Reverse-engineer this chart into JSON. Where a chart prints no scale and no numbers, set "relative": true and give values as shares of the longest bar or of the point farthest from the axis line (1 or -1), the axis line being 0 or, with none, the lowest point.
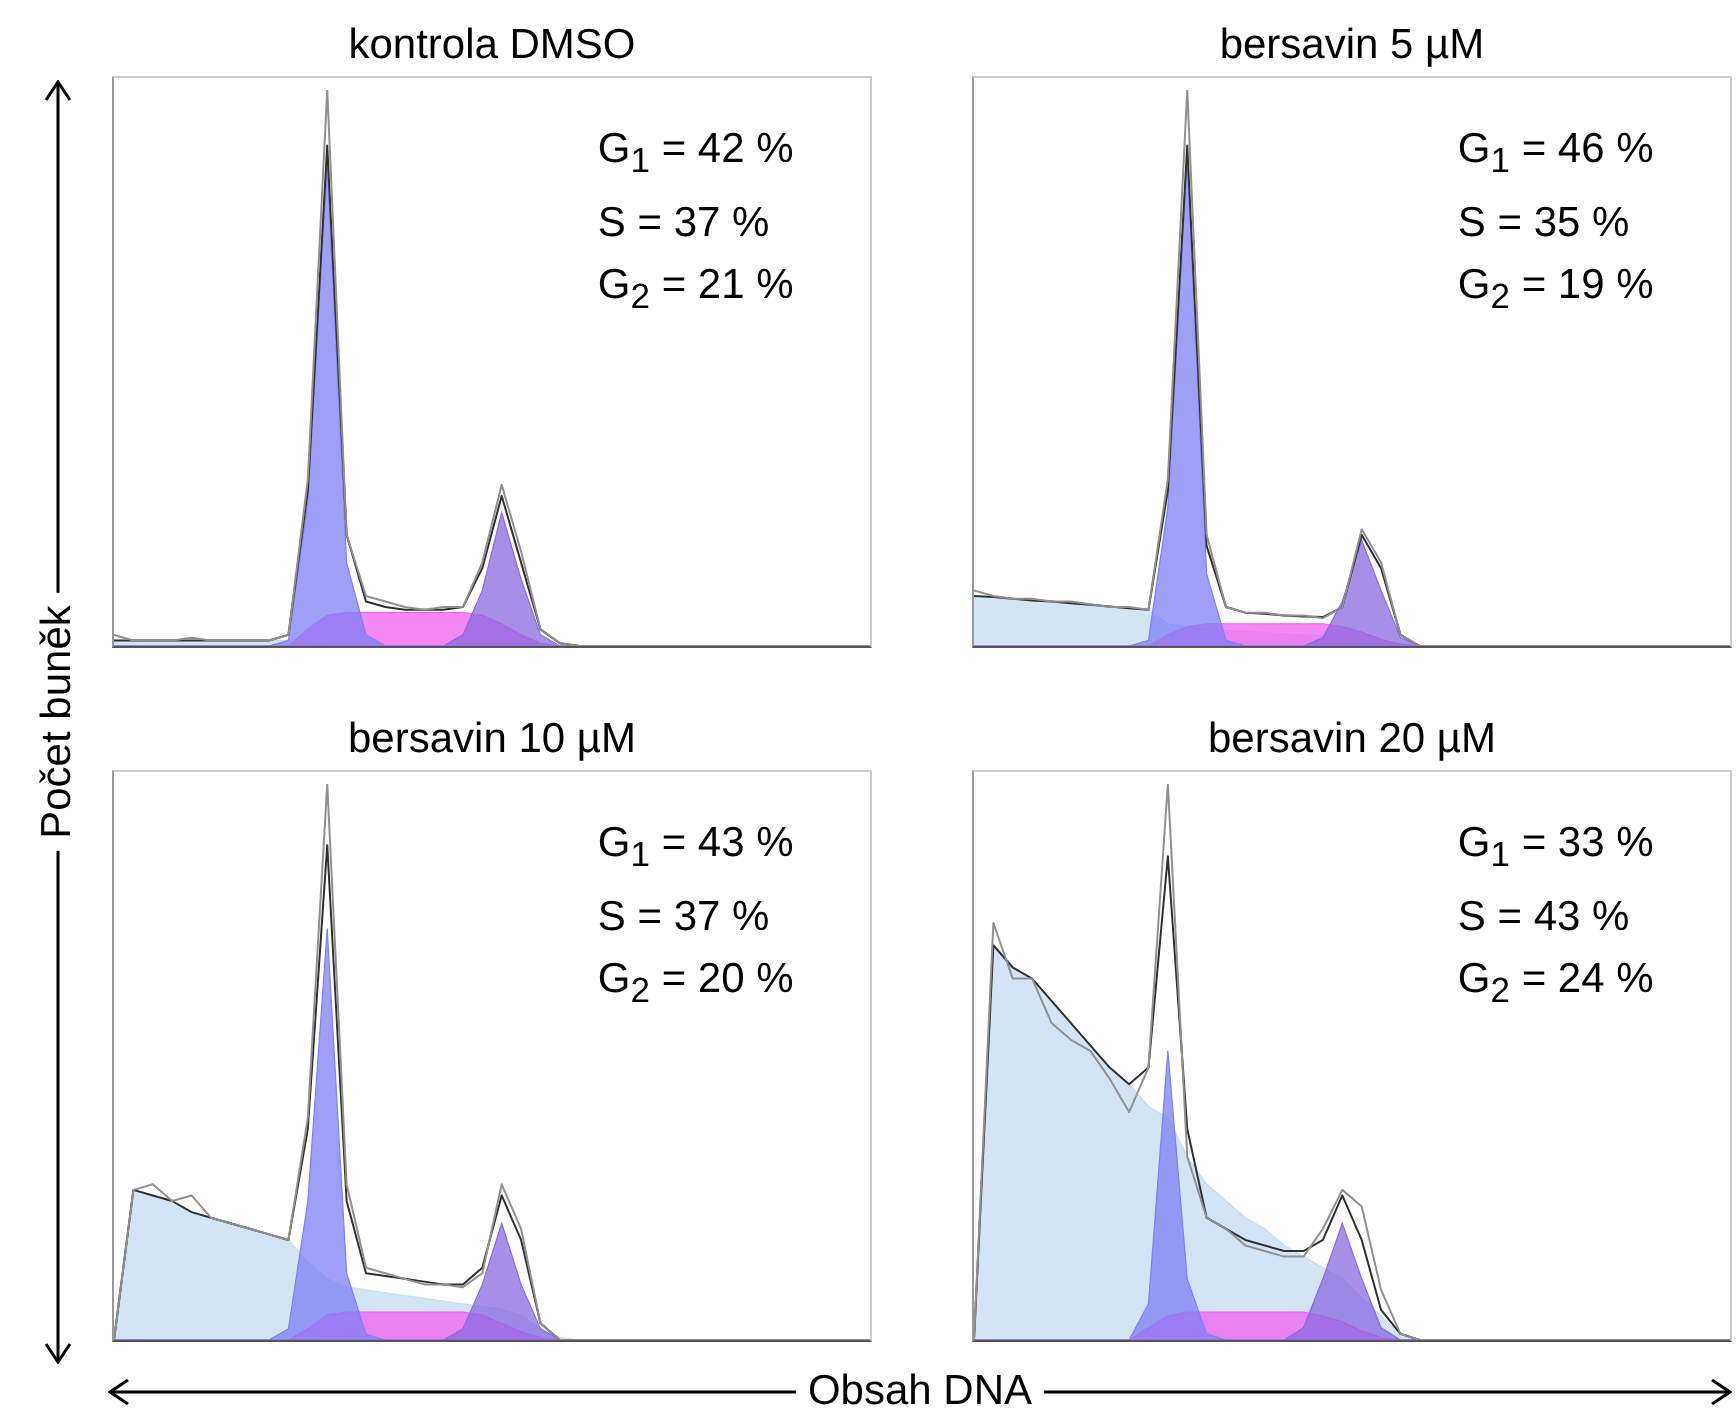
{
  "chart_data": [
    {
      "type": "area",
      "title": "kontrola DMSO",
      "ylabel": "Počet buněk",
      "relative": true,
      "categories": [
        null,
        null,
        null,
        null,
        null,
        null,
        null,
        null,
        null,
        null,
        null,
        null,
        null,
        null,
        null,
        null,
        null,
        null,
        null,
        null,
        null,
        null,
        null,
        null,
        null,
        null,
        null,
        null,
        null,
        null,
        null,
        null,
        null,
        null,
        null,
        null,
        null,
        null,
        null,
        null
      ],
      "annotations": [
        "G$_{1}$ = 42 %",
        "S = 37 %",
        "G$_{2}$ = 21 %"
      ],
      "series": [
        {
          "color": "#c5dbf0",
          "values": [
            0.01,
            0.01,
            0.01,
            0.01,
            0.01,
            0.01,
            0.01,
            0.01,
            0.01,
            0.01,
            0.005,
            0,
            0,
            0,
            0,
            0,
            0,
            0,
            0,
            0,
            0,
            0,
            0,
            0,
            0,
            0,
            0,
            0,
            0,
            0,
            0,
            0,
            0,
            0,
            0,
            0,
            0,
            0,
            0,
            0
          ]
        },
        {
          "color": "#f060f0",
          "values": [
            0,
            0,
            0,
            0,
            0,
            0,
            0,
            0,
            0,
            0,
            0.03,
            0.055,
            0.06,
            0.06,
            0.06,
            0.06,
            0.06,
            0.06,
            0.06,
            0.055,
            0.04,
            0.02,
            0.005,
            0,
            0,
            0,
            0,
            0,
            0,
            0,
            0,
            0,
            0,
            0,
            0,
            0,
            0,
            0,
            0,
            0
          ]
        },
        {
          "color": "#7f7ff5",
          "values": [
            0,
            0,
            0,
            0,
            0,
            0,
            0,
            0,
            0,
            0.01,
            0.26,
            0.87,
            0.15,
            0.02,
            0,
            0,
            0,
            0,
            0,
            0,
            0,
            0,
            0,
            0,
            0,
            0,
            0,
            0,
            0,
            0,
            0,
            0,
            0,
            0,
            0,
            0,
            0,
            0,
            0,
            0
          ]
        },
        {
          "color": "#8a6ae0",
          "values": [
            0,
            0,
            0,
            0,
            0,
            0,
            0,
            0,
            0,
            0,
            0,
            0,
            0,
            0,
            0,
            0,
            0,
            0,
            0.02,
            0.1,
            0.24,
            0.12,
            0.02,
            0,
            0,
            0,
            0,
            0,
            0,
            0,
            0,
            0,
            0,
            0,
            0,
            0,
            0,
            0,
            0,
            0
          ]
        },
        {
          "type": "line",
          "color": "#303030",
          "values": [
            0.01,
            0.01,
            0.01,
            0.01,
            0.01,
            0.01,
            0.01,
            0.01,
            0.01,
            0.02,
            0.28,
            0.9,
            0.2,
            0.08,
            0.07,
            0.065,
            0.065,
            0.065,
            0.07,
            0.14,
            0.27,
            0.15,
            0.03,
            0.005,
            0,
            0,
            0,
            0,
            0,
            0,
            0,
            0,
            0,
            0,
            0,
            0,
            0,
            0,
            0,
            0
          ]
        },
        {
          "type": "line",
          "color": "#909090",
          "values": [
            0.02,
            0.01,
            0.01,
            0.01,
            0.015,
            0.01,
            0.01,
            0.01,
            0.01,
            0.02,
            0.3,
            1.0,
            0.2,
            0.09,
            0.08,
            0.07,
            0.065,
            0.07,
            0.07,
            0.15,
            0.29,
            0.17,
            0.03,
            0.005,
            0,
            0,
            0,
            0,
            0,
            0,
            0,
            0,
            0,
            0,
            0,
            0,
            0,
            0,
            0,
            0
          ]
        }
      ]
    },
    {
      "type": "area",
      "title": "bersavin 5 µM",
      "relative": true,
      "categories": [
        null,
        null,
        null,
        null,
        null,
        null,
        null,
        null,
        null,
        null,
        null,
        null,
        null,
        null,
        null,
        null,
        null,
        null,
        null,
        null,
        null,
        null,
        null,
        null,
        null,
        null,
        null,
        null,
        null,
        null,
        null,
        null,
        null,
        null,
        null,
        null,
        null,
        null,
        null,
        null
      ],
      "annotations": [
        "G$_{1}$ = 46 %",
        "S = 35 %",
        "G$_{2}$ = 19 %"
      ],
      "series": [
        {
          "color": "#c5dbf0",
          "values": [
            0.09,
            0.088,
            0.085,
            0.082,
            0.08,
            0.077,
            0.074,
            0.071,
            0.068,
            0.065,
            0.04,
            0.035,
            0.03,
            0.028,
            0.026,
            0.024,
            0.022,
            0.02,
            0.018,
            0.015,
            0.012,
            0.008,
            0.004,
            0,
            0,
            0,
            0,
            0,
            0,
            0,
            0,
            0,
            0,
            0,
            0,
            0,
            0,
            0,
            0,
            0
          ]
        },
        {
          "color": "#f060f0",
          "values": [
            0,
            0,
            0,
            0,
            0,
            0,
            0,
            0,
            0,
            0,
            0.02,
            0.035,
            0.04,
            0.04,
            0.04,
            0.04,
            0.04,
            0.04,
            0.04,
            0.035,
            0.025,
            0.012,
            0.003,
            0,
            0,
            0,
            0,
            0,
            0,
            0,
            0,
            0,
            0,
            0,
            0,
            0,
            0,
            0,
            0,
            0
          ]
        },
        {
          "color": "#7f7ff5",
          "values": [
            0,
            0,
            0,
            0,
            0,
            0,
            0,
            0,
            0,
            0.01,
            0.25,
            0.88,
            0.13,
            0.01,
            0,
            0,
            0,
            0,
            0,
            0,
            0,
            0,
            0,
            0,
            0,
            0,
            0,
            0,
            0,
            0,
            0,
            0,
            0,
            0,
            0,
            0,
            0,
            0,
            0,
            0
          ]
        },
        {
          "color": "#8a6ae0",
          "values": [
            0,
            0,
            0,
            0,
            0,
            0,
            0,
            0,
            0,
            0,
            0,
            0,
            0,
            0,
            0,
            0,
            0,
            0,
            0.015,
            0.08,
            0.19,
            0.1,
            0.015,
            0,
            0,
            0,
            0,
            0,
            0,
            0,
            0,
            0,
            0,
            0,
            0,
            0,
            0,
            0,
            0,
            0
          ]
        },
        {
          "type": "line",
          "color": "#303030",
          "values": [
            0.09,
            0.088,
            0.085,
            0.082,
            0.08,
            0.077,
            0.074,
            0.071,
            0.068,
            0.065,
            0.28,
            0.9,
            0.18,
            0.07,
            0.06,
            0.058,
            0.055,
            0.053,
            0.052,
            0.07,
            0.2,
            0.14,
            0.02,
            0,
            0,
            0,
            0,
            0,
            0,
            0,
            0,
            0,
            0,
            0,
            0,
            0,
            0,
            0,
            0,
            0
          ]
        },
        {
          "type": "line",
          "color": "#909090",
          "values": [
            0.1,
            0.09,
            0.085,
            0.085,
            0.08,
            0.08,
            0.075,
            0.07,
            0.07,
            0.065,
            0.3,
            1.0,
            0.2,
            0.07,
            0.06,
            0.06,
            0.055,
            0.055,
            0.05,
            0.07,
            0.21,
            0.15,
            0.02,
            0,
            0,
            0,
            0,
            0,
            0,
            0,
            0,
            0,
            0,
            0,
            0,
            0,
            0,
            0,
            0,
            0
          ]
        }
      ]
    },
    {
      "type": "area",
      "title": "bersavin 10 µM",
      "xlabel": "Obsah DNA",
      "relative": true,
      "categories": [
        null,
        null,
        null,
        null,
        null,
        null,
        null,
        null,
        null,
        null,
        null,
        null,
        null,
        null,
        null,
        null,
        null,
        null,
        null,
        null,
        null,
        null,
        null,
        null,
        null,
        null,
        null,
        null,
        null,
        null,
        null,
        null,
        null,
        null,
        null,
        null,
        null,
        null,
        null,
        null
      ],
      "annotations": [
        "G$_{1}$ = 43 %",
        "S = 37 %",
        "G$_{2}$ = 20 %"
      ],
      "series": [
        {
          "color": "#c5dbf0",
          "values": [
            0,
            0.27,
            0.26,
            0.25,
            0.23,
            0.22,
            0.21,
            0.2,
            0.19,
            0.18,
            0.14,
            0.11,
            0.095,
            0.09,
            0.085,
            0.08,
            0.075,
            0.07,
            0.065,
            0.06,
            0.055,
            0.045,
            0.02,
            0.005,
            0,
            0,
            0,
            0,
            0,
            0,
            0,
            0,
            0,
            0,
            0,
            0,
            0,
            0,
            0,
            0
          ]
        },
        {
          "color": "#f060f0",
          "values": [
            0,
            0,
            0,
            0,
            0,
            0,
            0,
            0,
            0,
            0,
            0.02,
            0.045,
            0.05,
            0.05,
            0.05,
            0.05,
            0.05,
            0.05,
            0.05,
            0.045,
            0.03,
            0.015,
            0.004,
            0,
            0,
            0,
            0,
            0,
            0,
            0,
            0,
            0,
            0,
            0,
            0,
            0,
            0,
            0,
            0,
            0
          ]
        },
        {
          "color": "#7f7ff5",
          "values": [
            0,
            0,
            0,
            0,
            0,
            0,
            0,
            0,
            0,
            0.02,
            0.25,
            0.74,
            0.12,
            0.01,
            0,
            0,
            0,
            0,
            0,
            0,
            0,
            0,
            0,
            0,
            0,
            0,
            0,
            0,
            0,
            0,
            0,
            0,
            0,
            0,
            0,
            0,
            0,
            0,
            0,
            0
          ]
        },
        {
          "color": "#8a6ae0",
          "values": [
            0,
            0,
            0,
            0,
            0,
            0,
            0,
            0,
            0,
            0,
            0,
            0,
            0,
            0,
            0,
            0,
            0,
            0,
            0.02,
            0.1,
            0.21,
            0.1,
            0.02,
            0,
            0,
            0,
            0,
            0,
            0,
            0,
            0,
            0,
            0,
            0,
            0,
            0,
            0,
            0,
            0,
            0
          ]
        },
        {
          "type": "line",
          "color": "#303030",
          "values": [
            0,
            0.27,
            0.26,
            0.25,
            0.23,
            0.22,
            0.21,
            0.2,
            0.19,
            0.18,
            0.38,
            0.89,
            0.25,
            0.12,
            0.115,
            0.11,
            0.105,
            0.1,
            0.1,
            0.13,
            0.26,
            0.18,
            0.03,
            0,
            0,
            0,
            0,
            0,
            0,
            0,
            0,
            0,
            0,
            0,
            0,
            0,
            0,
            0,
            0,
            0
          ]
        },
        {
          "type": "line",
          "color": "#909090",
          "values": [
            0,
            0.27,
            0.28,
            0.25,
            0.26,
            0.22,
            0.21,
            0.2,
            0.19,
            0.18,
            0.4,
            1.0,
            0.28,
            0.13,
            0.12,
            0.11,
            0.1,
            0.1,
            0.095,
            0.12,
            0.28,
            0.2,
            0.03,
            0,
            0,
            0,
            0,
            0,
            0,
            0,
            0,
            0,
            0,
            0,
            0,
            0,
            0,
            0,
            0,
            0
          ]
        }
      ]
    },
    {
      "type": "area",
      "title": "bersavin 20 µM",
      "relative": true,
      "categories": [
        null,
        null,
        null,
        null,
        null,
        null,
        null,
        null,
        null,
        null,
        null,
        null,
        null,
        null,
        null,
        null,
        null,
        null,
        null,
        null,
        null,
        null,
        null,
        null,
        null,
        null,
        null,
        null,
        null,
        null,
        null,
        null,
        null,
        null,
        null,
        null,
        null,
        null,
        null,
        null
      ],
      "annotations": [
        "G$_{1}$ = 33 %",
        "S = 43 %",
        "G$_{2}$ = 24 %"
      ],
      "series": [
        {
          "color": "#c5dbf0",
          "values": [
            0,
            0.71,
            0.67,
            0.65,
            0.61,
            0.57,
            0.53,
            0.49,
            0.46,
            0.42,
            0.4,
            0.33,
            0.28,
            0.25,
            0.22,
            0.2,
            0.17,
            0.15,
            0.13,
            0.11,
            0.076,
            0.043,
            0.011,
            0,
            0,
            0,
            0,
            0,
            0,
            0,
            0,
            0,
            0,
            0,
            0,
            0,
            0,
            0,
            0,
            0
          ]
        },
        {
          "color": "#f060f0",
          "values": [
            0,
            0,
            0,
            0,
            0,
            0,
            0,
            0,
            0,
            0.022,
            0.043,
            0.05,
            0.05,
            0.05,
            0.05,
            0.05,
            0.05,
            0.05,
            0.043,
            0.033,
            0.016,
            0.005,
            0,
            0,
            0,
            0,
            0,
            0,
            0,
            0,
            0,
            0,
            0,
            0,
            0,
            0,
            0,
            0,
            0,
            0
          ]
        },
        {
          "color": "#7f7ff5",
          "values": [
            0,
            0,
            0,
            0,
            0,
            0,
            0,
            0,
            0,
            0.065,
            0.52,
            0.11,
            0.011,
            0,
            0,
            0,
            0,
            0,
            0,
            0,
            0,
            0,
            0,
            0,
            0,
            0,
            0,
            0,
            0,
            0,
            0,
            0,
            0,
            0,
            0,
            0,
            0,
            0,
            0,
            0
          ]
        },
        {
          "color": "#8a6ae0",
          "values": [
            0,
            0,
            0,
            0,
            0,
            0,
            0,
            0,
            0,
            0,
            0,
            0,
            0,
            0,
            0,
            0,
            0,
            0.022,
            0.11,
            0.21,
            0.11,
            0.022,
            0,
            0,
            0,
            0,
            0,
            0,
            0,
            0,
            0,
            0,
            0,
            0,
            0,
            0,
            0,
            0,
            0,
            0
          ]
        },
        {
          "type": "line",
          "color": "#303030",
          "values": [
            0,
            0.71,
            0.67,
            0.65,
            0.61,
            0.57,
            0.53,
            0.49,
            0.46,
            0.49,
            0.87,
            0.38,
            0.22,
            0.2,
            0.18,
            0.17,
            0.16,
            0.16,
            0.18,
            0.26,
            0.18,
            0.054,
            0.011,
            0,
            0,
            0,
            0,
            0,
            0,
            0,
            0,
            0,
            0,
            0,
            0,
            0,
            0,
            0,
            0,
            0
          ]
        },
        {
          "type": "line",
          "color": "#909090",
          "values": [
            0,
            0.75,
            0.65,
            0.65,
            0.57,
            0.54,
            0.52,
            0.47,
            0.41,
            0.49,
            1.0,
            0.33,
            0.22,
            0.2,
            0.17,
            0.16,
            0.15,
            0.15,
            0.2,
            0.27,
            0.24,
            0.09,
            0.011,
            0,
            0,
            0,
            0,
            0,
            0,
            0,
            0,
            0,
            0,
            0,
            0,
            0,
            0,
            0,
            0,
            0
          ]
        }
      ]
    }
  ]
}
